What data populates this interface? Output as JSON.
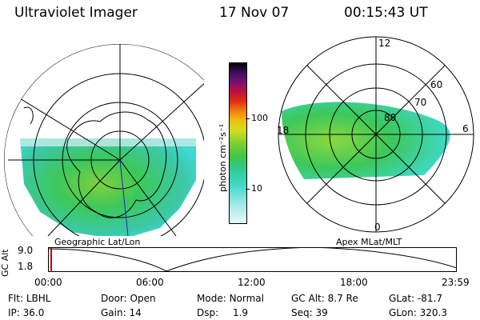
{
  "header": {
    "title": "Ultraviolet Imager",
    "date": "17 Nov 07",
    "time": "00:15:43 UT"
  },
  "panels": {
    "geographic_label": "Geographic Lat/Lon",
    "apex_label": "Apex MLat/MLT",
    "apex_ticks": {
      "top": "12",
      "right": "6",
      "bottom": "0",
      "left": "18",
      "lat60": "60",
      "lat70": "70",
      "lat80": "80"
    }
  },
  "colorbar": {
    "unit": "photon cm⁻²s⁻¹",
    "tick_100": "100",
    "tick_10": "10"
  },
  "altitude_plot": {
    "axis_label": "GC Alt",
    "y_max": "9.0",
    "y_min": "1.8",
    "time_ticks": [
      "00:00",
      "06:00",
      "12:00",
      "18:00",
      "23:59"
    ]
  },
  "status": {
    "row1": [
      {
        "label": "Flt:",
        "value": "LBHL"
      },
      {
        "label": "Door:",
        "value": "Open"
      },
      {
        "label": "Mode:",
        "value": "Normal"
      },
      {
        "label": "GC Alt:",
        "value": "8.7 Re"
      },
      {
        "label": "GLat:",
        "value": "-81.7"
      }
    ],
    "row2": [
      {
        "label": "IP:",
        "value": "36.0"
      },
      {
        "label": "Gain:",
        "value": "14"
      },
      {
        "label": "Dsp:",
        "value": "1.9"
      },
      {
        "label": "Seq:",
        "value": "39"
      },
      {
        "label": "GLon:",
        "value": "320.3"
      }
    ]
  },
  "colors": {
    "aurora_green": "#3cc83c",
    "cyan": "#40d8c8",
    "marker": "#d00000"
  }
}
